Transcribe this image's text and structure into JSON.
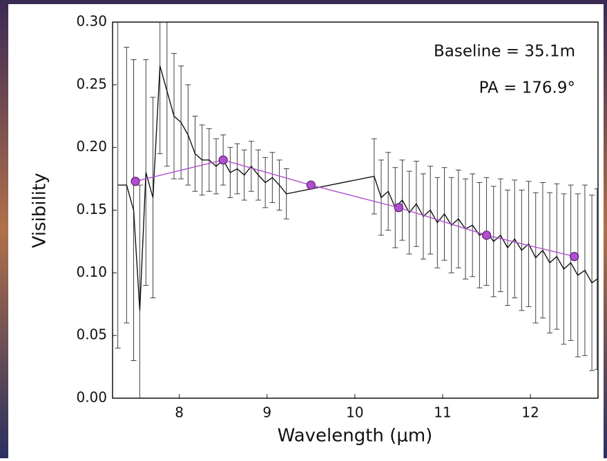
{
  "chart_data": {
    "type": "errorbar_line",
    "xlabel": "Wavelength (μm)",
    "ylabel": "Visibility",
    "annotations": [
      "Baseline = 35.1m",
      "PA = 176.9°"
    ],
    "xlim": [
      7.24,
      12.77
    ],
    "ylim": [
      0,
      0.3
    ],
    "xticks": [
      8,
      9,
      10,
      11,
      12
    ],
    "yticks": [
      {
        "value": 0,
        "label": "0.00"
      },
      {
        "value": 0.05,
        "label": "0.05"
      },
      {
        "value": 0.1,
        "label": "0.10"
      },
      {
        "value": 0.15,
        "label": "0.15"
      },
      {
        "value": 0.2,
        "label": "0.20"
      },
      {
        "value": 0.25,
        "label": "0.25"
      },
      {
        "value": 0.3,
        "label": "0.30"
      }
    ],
    "grid": true,
    "series": [
      {
        "color": "#111111",
        "x": [
          7.3,
          7.4,
          7.48,
          7.55,
          7.62,
          7.7,
          7.78,
          7.86,
          7.94,
          8.02,
          8.1,
          8.18,
          8.26,
          8.34,
          8.42,
          8.5,
          8.58,
          8.66,
          8.74,
          8.82,
          8.9,
          8.98,
          9.06,
          9.14,
          9.22,
          10.22,
          10.3,
          10.38,
          10.46,
          10.54,
          10.62,
          10.7,
          10.78,
          10.86,
          10.94,
          11.02,
          11.1,
          11.18,
          11.26,
          11.34,
          11.42,
          11.5,
          11.58,
          11.66,
          11.74,
          11.82,
          11.9,
          11.98,
          12.06,
          12.14,
          12.22,
          12.3,
          12.38,
          12.46,
          12.54,
          12.62,
          12.7,
          12.76
        ],
        "values": [
          0.17,
          0.17,
          0.15,
          0.07,
          0.18,
          0.16,
          0.265,
          0.245,
          0.225,
          0.22,
          0.21,
          0.195,
          0.19,
          0.19,
          0.185,
          0.19,
          0.18,
          0.183,
          0.178,
          0.185,
          0.178,
          0.172,
          0.176,
          0.17,
          0.163,
          0.177,
          0.16,
          0.165,
          0.152,
          0.158,
          0.148,
          0.155,
          0.145,
          0.15,
          0.14,
          0.147,
          0.138,
          0.143,
          0.135,
          0.138,
          0.13,
          0.133,
          0.125,
          0.13,
          0.12,
          0.127,
          0.118,
          0.123,
          0.112,
          0.118,
          0.108,
          0.113,
          0.103,
          0.108,
          0.098,
          0.102,
          0.092,
          0.095
        ],
        "errors": [
          0.13,
          0.11,
          0.12,
          0.1,
          0.09,
          0.08,
          0.07,
          0.06,
          0.05,
          0.045,
          0.04,
          0.03,
          0.028,
          0.025,
          0.022,
          0.02,
          0.02,
          0.02,
          0.02,
          0.02,
          0.02,
          0.02,
          0.02,
          0.02,
          0.02,
          0.03,
          0.03,
          0.031,
          0.032,
          0.032,
          0.033,
          0.034,
          0.034,
          0.035,
          0.036,
          0.037,
          0.038,
          0.039,
          0.04,
          0.041,
          0.042,
          0.043,
          0.044,
          0.045,
          0.046,
          0.047,
          0.048,
          0.05,
          0.052,
          0.054,
          0.056,
          0.058,
          0.06,
          0.062,
          0.065,
          0.068,
          0.07,
          0.072
        ]
      },
      {
        "color": "#b04fd0",
        "x": [
          7.5,
          8.5,
          9.5,
          10.5,
          11.5,
          12.5
        ],
        "values": [
          0.173,
          0.19,
          0.17,
          0.152,
          0.13,
          0.113
        ]
      }
    ]
  }
}
